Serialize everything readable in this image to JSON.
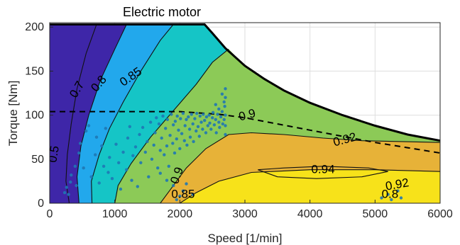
{
  "chart_data": {
    "type": "contour",
    "title": "Electric motor",
    "xlabel": "Speed [1/min]",
    "ylabel": "Torque [Nm]",
    "xlim": [
      0,
      6000
    ],
    "ylim": [
      0,
      205
    ],
    "x_ticks": [
      0,
      1000,
      2000,
      3000,
      4000,
      5000,
      6000
    ],
    "y_ticks": [
      0,
      50,
      100,
      150,
      200
    ],
    "x_tick_labels": [
      "0",
      "1000",
      "2000",
      "3000",
      "4000",
      "5000",
      "6000"
    ],
    "y_tick_labels": [
      "0",
      "50",
      "100",
      "150",
      "200"
    ],
    "grid": true,
    "max_torque_curve": [
      [
        0,
        203
      ],
      [
        2380,
        203
      ],
      [
        2500,
        193
      ],
      [
        2700,
        176
      ],
      [
        3000,
        156
      ],
      [
        3300,
        141
      ],
      [
        3600,
        128
      ],
      [
        4000,
        114
      ],
      [
        4500,
        100
      ],
      [
        5000,
        88
      ],
      [
        5500,
        78
      ],
      [
        6000,
        71
      ]
    ],
    "dashed_curve": [
      [
        0,
        104
      ],
      [
        1200,
        104
      ],
      [
        2000,
        104
      ],
      [
        2600,
        101
      ],
      [
        3000,
        97
      ],
      [
        3500,
        90
      ],
      [
        4000,
        83
      ],
      [
        4500,
        76
      ],
      [
        5000,
        69
      ],
      [
        5500,
        63
      ],
      [
        6000,
        57
      ]
    ],
    "efficiency_levels": [
      {
        "level": "0.5",
        "color": "#3e26a8",
        "boundary": [
          [
            300,
            0
          ],
          [
            250,
            25
          ],
          [
            270,
            55
          ],
          [
            330,
            90
          ],
          [
            420,
            130
          ],
          [
            560,
            170
          ],
          [
            720,
            203
          ]
        ]
      },
      {
        "level": "0.7",
        "color": "#22a8ec",
        "boundary": [
          [
            450,
            0
          ],
          [
            420,
            30
          ],
          [
            480,
            65
          ],
          [
            600,
            100
          ],
          [
            780,
            140
          ],
          [
            1000,
            175
          ],
          [
            1180,
            203
          ]
        ]
      },
      {
        "level": "0.8",
        "color": "#15c5c6",
        "boundary": [
          [
            650,
            0
          ],
          [
            640,
            25
          ],
          [
            760,
            55
          ],
          [
            920,
            85
          ],
          [
            1130,
            115
          ],
          [
            1400,
            150
          ],
          [
            1700,
            185
          ],
          [
            1900,
            203
          ]
        ]
      },
      {
        "level": "0.85",
        "color": "#8cca57",
        "boundary": [
          [
            1000,
            0
          ],
          [
            1050,
            20
          ],
          [
            1250,
            45
          ],
          [
            1550,
            75
          ],
          [
            1900,
            105
          ],
          [
            2250,
            135
          ],
          [
            2500,
            160
          ],
          [
            2750,
            175
          ]
        ]
      },
      {
        "level": "0.9",
        "color": "#e7b238",
        "boundary": [
          [
            1700,
            0
          ],
          [
            1850,
            15
          ],
          [
            2100,
            40
          ],
          [
            2400,
            62
          ],
          [
            2750,
            78
          ],
          [
            3100,
            80
          ],
          [
            3600,
            78
          ],
          [
            4200,
            74
          ],
          [
            4800,
            71
          ],
          [
            5400,
            70
          ],
          [
            6000,
            69
          ]
        ]
      },
      {
        "level": "0.92",
        "color": "#f7e21a",
        "boundary": [
          [
            2000,
            0
          ],
          [
            2250,
            12
          ],
          [
            2600,
            25
          ],
          [
            3100,
            35
          ],
          [
            4000,
            38
          ],
          [
            5000,
            38
          ],
          [
            6000,
            36
          ]
        ]
      }
    ],
    "contour_labels": [
      {
        "text": "0.5",
        "x": 120,
        "y": 55,
        "angle": -80
      },
      {
        "text": "0.7",
        "x": 470,
        "y": 127,
        "angle": -60
      },
      {
        "text": "0.8",
        "x": 800,
        "y": 133,
        "angle": -50
      },
      {
        "text": "0.85",
        "x": 1280,
        "y": 140,
        "angle": -35
      },
      {
        "text": "0.9",
        "x": 3050,
        "y": 96,
        "angle": -15
      },
      {
        "text": "0.92",
        "x": 4550,
        "y": 68,
        "angle": -15
      },
      {
        "text": "0.94",
        "x": 4200,
        "y": 34,
        "angle": 0
      },
      {
        "text": "0.9",
        "x": 2010,
        "y": 30,
        "angle": -70
      },
      {
        "text": "0.92",
        "x": 5350,
        "y": 17,
        "angle": -10
      },
      {
        "text": "0.85",
        "x": 2050,
        "y": 6,
        "angle": 0
      },
      {
        "text": "0.8",
        "x": 5230,
        "y": 6,
        "angle": 0
      }
    ],
    "scatter_points": [
      [
        230,
        12
      ],
      [
        260,
        18
      ],
      [
        290,
        10
      ],
      [
        320,
        24
      ],
      [
        330,
        32
      ],
      [
        390,
        42
      ],
      [
        410,
        20
      ],
      [
        450,
        57
      ],
      [
        470,
        68
      ],
      [
        520,
        40
      ],
      [
        560,
        82
      ],
      [
        600,
        88
      ],
      [
        640,
        30
      ],
      [
        700,
        55
      ],
      [
        720,
        75
      ],
      [
        760,
        23
      ],
      [
        800,
        65
      ],
      [
        830,
        42
      ],
      [
        860,
        85
      ],
      [
        900,
        35
      ],
      [
        920,
        52
      ],
      [
        960,
        28
      ],
      [
        1020,
        67
      ],
      [
        1060,
        46
      ],
      [
        1090,
        16
      ],
      [
        1130,
        58
      ],
      [
        1180,
        38
      ],
      [
        1200,
        74
      ],
      [
        1230,
        87
      ],
      [
        1260,
        26
      ],
      [
        1280,
        54
      ],
      [
        1320,
        64
      ],
      [
        1350,
        19
      ],
      [
        1380,
        78
      ],
      [
        1400,
        46
      ],
      [
        1430,
        86
      ],
      [
        1470,
        58
      ],
      [
        1500,
        70
      ],
      [
        1520,
        30
      ],
      [
        1550,
        92
      ],
      [
        1570,
        50
      ],
      [
        1600,
        66
      ],
      [
        1620,
        80
      ],
      [
        1640,
        97
      ],
      [
        1660,
        40
      ],
      [
        1680,
        90
      ],
      [
        1700,
        60
      ],
      [
        1720,
        74
      ],
      [
        1740,
        99
      ],
      [
        1760,
        55
      ],
      [
        1780,
        85
      ],
      [
        1800,
        65
      ],
      [
        1810,
        95
      ],
      [
        1830,
        42
      ],
      [
        1850,
        77
      ],
      [
        1870,
        101
      ],
      [
        1890,
        68
      ],
      [
        1900,
        89
      ],
      [
        1920,
        57
      ],
      [
        1930,
        93
      ],
      [
        1950,
        73
      ],
      [
        1960,
        99
      ],
      [
        1980,
        83
      ],
      [
        2000,
        62
      ],
      [
        2010,
        96
      ],
      [
        2030,
        79
      ],
      [
        2050,
        102
      ],
      [
        2070,
        71
      ],
      [
        2080,
        88
      ],
      [
        2100,
        95
      ],
      [
        2110,
        66
      ],
      [
        2130,
        98
      ],
      [
        2150,
        84
      ],
      [
        2160,
        75
      ],
      [
        2180,
        101
      ],
      [
        2200,
        90
      ],
      [
        2210,
        70
      ],
      [
        2230,
        96
      ],
      [
        2250,
        82
      ],
      [
        2260,
        102
      ],
      [
        2280,
        87
      ],
      [
        2300,
        76
      ],
      [
        2310,
        99
      ],
      [
        2330,
        92
      ],
      [
        2350,
        84
      ],
      [
        2360,
        101
      ],
      [
        2380,
        94
      ],
      [
        2400,
        80
      ],
      [
        2410,
        98
      ],
      [
        2430,
        88
      ],
      [
        2450,
        100
      ],
      [
        2460,
        91
      ],
      [
        2480,
        84
      ],
      [
        2500,
        97
      ],
      [
        2510,
        103
      ],
      [
        2530,
        89
      ],
      [
        2550,
        95
      ],
      [
        2560,
        80
      ],
      [
        2580,
        101
      ],
      [
        2600,
        92
      ],
      [
        2610,
        86
      ],
      [
        2630,
        98
      ],
      [
        2650,
        104
      ],
      [
        2660,
        90
      ],
      [
        2680,
        95
      ],
      [
        2690,
        110
      ],
      [
        2700,
        100
      ],
      [
        2700,
        88
      ],
      [
        2700,
        120
      ],
      [
        2700,
        130
      ],
      [
        2700,
        78
      ],
      [
        2680,
        115
      ],
      [
        2650,
        124
      ],
      [
        2600,
        107
      ],
      [
        2550,
        112
      ],
      [
        1900,
        20
      ],
      [
        2000,
        8
      ],
      [
        2050,
        14
      ],
      [
        1950,
        4
      ],
      [
        2100,
        22
      ],
      [
        2200,
        10
      ],
      [
        1700,
        34
      ],
      [
        1800,
        26
      ],
      [
        5100,
        6
      ],
      [
        5200,
        10
      ],
      [
        5250,
        4
      ],
      [
        5350,
        14
      ],
      [
        5400,
        6
      ]
    ]
  }
}
